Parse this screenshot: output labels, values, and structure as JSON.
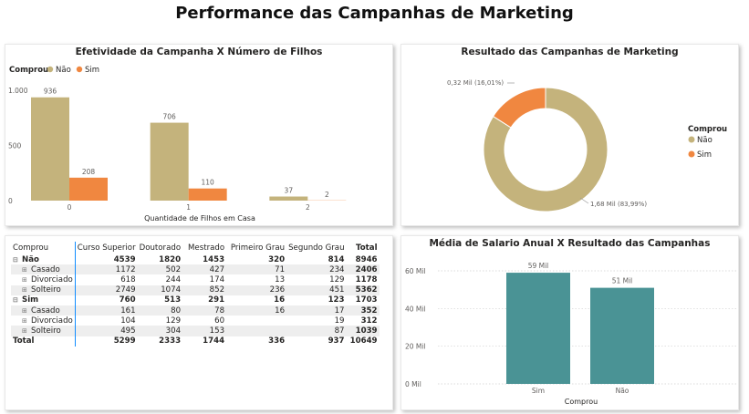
{
  "page_title": "Performance das Campanhas de Marketing",
  "colors": {
    "nao": "#C4B37C",
    "sim": "#F08740",
    "teal": "#4A9395",
    "axis_text": "#605E5C"
  },
  "chart_data": [
    {
      "type": "bar",
      "title": "Efetividade da Campanha X Número de Filhos",
      "xlabel": "Quantidade de Filhos em Casa",
      "ylabel": "",
      "legend_title": "Comprou",
      "categories": [
        "0",
        "1",
        "2"
      ],
      "series": [
        {
          "name": "Não",
          "values": [
            936,
            706,
            37
          ],
          "labels": [
            "936",
            "706",
            "37"
          ]
        },
        {
          "name": "Sim",
          "values": [
            208,
            110,
            2
          ],
          "labels": [
            "208",
            "110",
            "2"
          ]
        }
      ],
      "yticks": [
        "1.000",
        "500",
        "0"
      ],
      "ylim": [
        0,
        1000
      ],
      "grid": false,
      "legend": "top-left"
    },
    {
      "type": "pie",
      "title": "Resultado das Campanhas de Marketing",
      "legend_title": "Comprou",
      "slices": [
        {
          "name": "Não",
          "value": 1680,
          "label": "1,68 Mil (83,99%)"
        },
        {
          "name": "Sim",
          "value": 320,
          "label": "0,32 Mil (16,01%)"
        }
      ],
      "legend": "right"
    },
    {
      "type": "bar",
      "title": "Média de Salario Anual X Resultado das Campanhas",
      "xlabel": "Comprou",
      "ylabel": "",
      "categories": [
        "Sim",
        "Não"
      ],
      "values": [
        59000,
        51000
      ],
      "labels": [
        "59 Mil",
        "51 Mil"
      ],
      "yticks": [
        "60 Mil",
        "40 Mil",
        "20 Mil",
        "0 Mil"
      ],
      "ylim": [
        0,
        60000
      ],
      "grid": true
    }
  ],
  "matrix": {
    "columns": [
      "Comprou",
      "Curso Superior",
      "Doutorado",
      "Mestrado",
      "Primeiro Grau",
      "Segundo Grau",
      "Total"
    ],
    "rows": [
      {
        "level": 0,
        "label": "Não",
        "cells": [
          "4539",
          "1820",
          "1453",
          "320",
          "814",
          "8946"
        ],
        "bold": true
      },
      {
        "level": 1,
        "label": "Casado",
        "cells": [
          "1172",
          "502",
          "427",
          "71",
          "234",
          "2406"
        ]
      },
      {
        "level": 1,
        "label": "Divorciado",
        "cells": [
          "618",
          "244",
          "174",
          "13",
          "129",
          "1178"
        ]
      },
      {
        "level": 1,
        "label": "Solteiro",
        "cells": [
          "2749",
          "1074",
          "852",
          "236",
          "451",
          "5362"
        ]
      },
      {
        "level": 0,
        "label": "Sim",
        "cells": [
          "760",
          "513",
          "291",
          "16",
          "123",
          "1703"
        ],
        "bold": true
      },
      {
        "level": 1,
        "label": "Casado",
        "cells": [
          "161",
          "80",
          "78",
          "16",
          "17",
          "352"
        ]
      },
      {
        "level": 1,
        "label": "Divorciado",
        "cells": [
          "104",
          "129",
          "60",
          "",
          "19",
          "312"
        ]
      },
      {
        "level": 1,
        "label": "Solteiro",
        "cells": [
          "495",
          "304",
          "153",
          "",
          "87",
          "1039"
        ]
      },
      {
        "level": 0,
        "label": "Total",
        "cells": [
          "5299",
          "2333",
          "1744",
          "336",
          "937",
          "10649"
        ],
        "bold": true,
        "total": true
      }
    ]
  }
}
